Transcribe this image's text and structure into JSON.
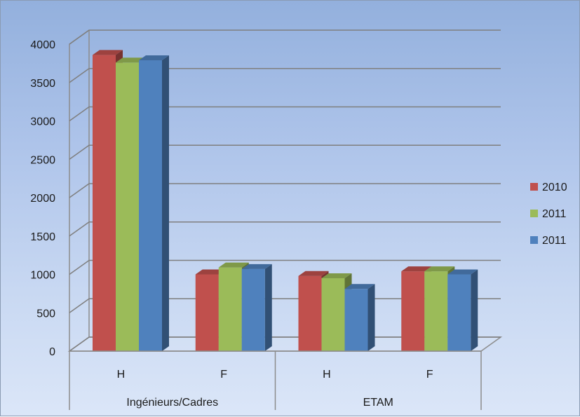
{
  "chart_data": {
    "type": "bar",
    "title": "",
    "xlabel": "",
    "ylabel": "",
    "ylim": [
      0,
      4000
    ],
    "yticks": [
      0,
      500,
      1000,
      1500,
      2000,
      2500,
      3000,
      3500,
      4000
    ],
    "grid": true,
    "legend_position": "right",
    "groups": [
      {
        "label": "Ingénieurs/Cadres",
        "categories": [
          "H",
          "F"
        ]
      },
      {
        "label": "ETAM",
        "categories": [
          "H",
          "F"
        ]
      }
    ],
    "categories": [
      "H",
      "F",
      "H",
      "F"
    ],
    "series": [
      {
        "name": "2010",
        "color": "#c0504d",
        "values": [
          3860,
          1000,
          980,
          1040
        ]
      },
      {
        "name": "2011",
        "color": "#9bbb59",
        "values": [
          3760,
          1090,
          950,
          1040
        ]
      },
      {
        "name": "2011",
        "color": "#4f81bd",
        "values": [
          3790,
          1070,
          810,
          1000
        ]
      }
    ]
  }
}
